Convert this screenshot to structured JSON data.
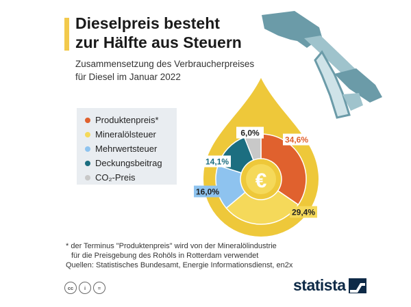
{
  "header": {
    "title_line1": "Dieselpreis besteht",
    "title_line2": "zur Hälfte aus Steuern",
    "subtitle_line1": "Zusammensetzung des Verbraucherpreises",
    "subtitle_line2": "für Diesel im Januar 2022"
  },
  "legend": {
    "items": [
      {
        "label": "Produktenpreis*",
        "color": "#e0612e"
      },
      {
        "label": "Mineralölsteuer",
        "color": "#f5d95a"
      },
      {
        "label": "Mehrwertsteuer",
        "color": "#8ec3ef"
      },
      {
        "label": "Deckungsbeitrag",
        "color": "#1c6e80"
      },
      {
        "label": "CO₂-Preis",
        "color": "#c8c8c8"
      }
    ]
  },
  "chart_data": {
    "type": "pie",
    "variant": "donut",
    "title": "Dieselpreis besteht zur Hälfte aus Steuern",
    "subtitle": "Zusammensetzung des Verbraucherpreises für Diesel im Januar 2022",
    "unit": "%",
    "center_symbol": "€",
    "slices": [
      {
        "name": "Produktenpreis*",
        "value": 34.6,
        "label": "34,6%",
        "color": "#e0612e"
      },
      {
        "name": "Mineralölsteuer",
        "value": 29.4,
        "label": "29,4%",
        "color": "#f5d95a"
      },
      {
        "name": "Mehrwertsteuer",
        "value": 16.0,
        "label": "16,0%",
        "color": "#8ec3ef"
      },
      {
        "name": "Deckungsbeitrag",
        "value": 14.1,
        "label": "14,1%",
        "color": "#1c6e80"
      },
      {
        "name": "CO₂-Preis",
        "value": 6.0,
        "label": "6,0%",
        "color": "#c8c8c8"
      }
    ]
  },
  "footer": {
    "note_line1": "* der Terminus \"Produktenpreis\" wird von der Mineralölindustrie",
    "note_line2": "für die Preisgebung des Rohöls in Rotterdam verwendet",
    "sources": "Quellen: Statistisches Bundesamt, Energie Informationsdienst, en2x",
    "brand": "statista",
    "license_icons": [
      "cc",
      "i",
      "="
    ]
  },
  "colors": {
    "drop": "#eec83a",
    "accent": "#f2c94c",
    "pump": "#6b9ba8",
    "brand": "#0e2a47"
  }
}
